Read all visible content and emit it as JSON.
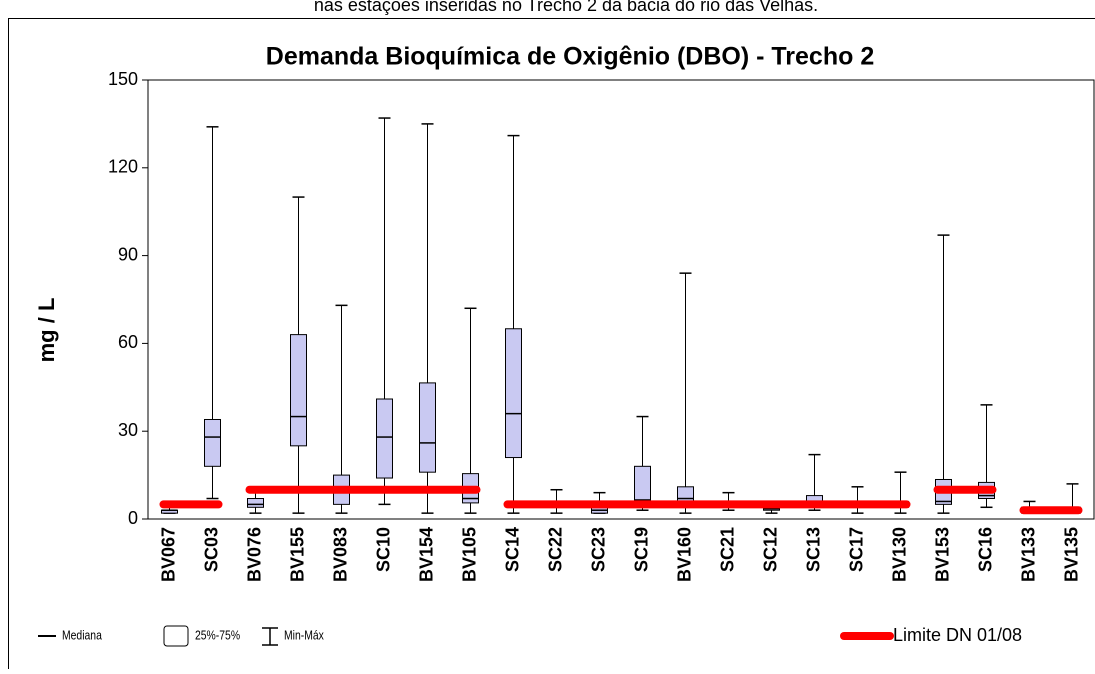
{
  "caption": "nas estações inseridas no Trecho 2 da  bacia do rio das Velhas.",
  "chart_data": {
    "type": "box",
    "title": "Demanda Bioquímica de Oxigênio (DBO) - Trecho 2",
    "y_label": "mg / L",
    "categories": [
      "BV067",
      "SC03",
      "BV076",
      "BV155",
      "BV083",
      "SC10",
      "BV154",
      "BV105",
      "SC14",
      "SC22",
      "SC23",
      "SC19",
      "BV160",
      "SC21",
      "SC12",
      "SC13",
      "SC17",
      "BV130",
      "BV153",
      "SC16",
      "BV133",
      "BV135"
    ],
    "min": [
      2,
      7,
      2,
      2,
      2,
      5,
      2,
      2,
      2,
      2,
      2,
      3,
      2,
      3,
      2,
      3,
      2,
      2,
      2,
      4,
      2,
      2
    ],
    "q1": [
      2,
      18,
      4,
      25,
      5,
      14,
      16,
      5.5,
      21,
      4,
      2,
      4,
      4,
      4,
      3,
      4,
      4,
      4,
      5,
      7,
      2,
      2
    ],
    "median": [
      3,
      28,
      5,
      35,
      10,
      28,
      26,
      7,
      36,
      5,
      3,
      6.5,
      7,
      5,
      3.5,
      6,
      5,
      5,
      6,
      8,
      3,
      3
    ],
    "q3": [
      3,
      34,
      7,
      63,
      15,
      41,
      46.5,
      15.5,
      65,
      6,
      4,
      18,
      11,
      6,
      4,
      8,
      6,
      6,
      13.5,
      12.5,
      4,
      4
    ],
    "max": [
      4,
      134,
      11,
      110,
      73,
      137,
      135,
      72,
      131,
      10,
      9,
      35,
      84,
      9,
      4,
      22,
      11,
      16,
      97,
      39,
      6,
      12
    ],
    "box_color": "#c9c9f2",
    "legend_labels": {
      "median": "Mediana",
      "box": "25%-75%",
      "whisker": "Min-Máx"
    },
    "limit": {
      "name": "Limite DN 01/08",
      "color": "#ff0000",
      "values": [
        5,
        5,
        10,
        10,
        10,
        10,
        10,
        10,
        5,
        5,
        5,
        5,
        5,
        5,
        5,
        5,
        5,
        5,
        10,
        10,
        3,
        3
      ]
    },
    "ylim": [
      0,
      150
    ],
    "yticks": [
      0,
      30,
      60,
      90,
      120,
      150
    ]
  }
}
